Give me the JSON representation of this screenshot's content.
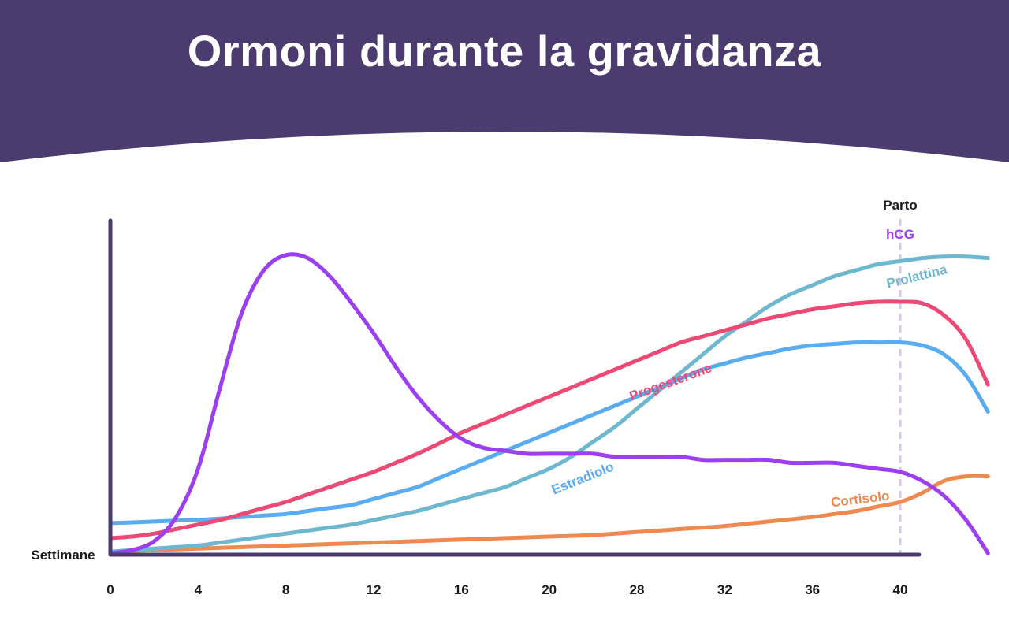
{
  "header": {
    "title": "Ormoni durante la gravidanza",
    "background": "#4b3b6e"
  },
  "chart_data": {
    "type": "line",
    "title": "Ormoni durante la gravidanza",
    "xlabel": "Settimane",
    "ylabel": "",
    "x_ticks": [
      "0",
      "4",
      "8",
      "12",
      "16",
      "20",
      "28",
      "32",
      "36",
      "40"
    ],
    "ylim": [
      0,
      100
    ],
    "grid": false,
    "annotation": {
      "label": "Parto",
      "at_tick": "40",
      "color": "#d9c5ee"
    },
    "axis_color": "#4b3b6e",
    "series": [
      {
        "name": "hCG",
        "color": "#9b3ff0",
        "points": [
          [
            0,
            0
          ],
          [
            1,
            1
          ],
          [
            2,
            4
          ],
          [
            3,
            12
          ],
          [
            4,
            28
          ],
          [
            5,
            55
          ],
          [
            6,
            80
          ],
          [
            7,
            94
          ],
          [
            8,
            99
          ],
          [
            9,
            98
          ],
          [
            10,
            92
          ],
          [
            11,
            83
          ],
          [
            12,
            73
          ],
          [
            13,
            62
          ],
          [
            14,
            52
          ],
          [
            15,
            44
          ],
          [
            16,
            38
          ],
          [
            17,
            35
          ],
          [
            18,
            34
          ],
          [
            19,
            33
          ],
          [
            20,
            33
          ],
          [
            21,
            33
          ],
          [
            22,
            33
          ],
          [
            23,
            32
          ],
          [
            24,
            32
          ],
          [
            25,
            32
          ],
          [
            26,
            32
          ],
          [
            27,
            31
          ],
          [
            28,
            31
          ],
          [
            29,
            31
          ],
          [
            30,
            31
          ],
          [
            31,
            30
          ],
          [
            32,
            30
          ],
          [
            33,
            30
          ],
          [
            34,
            29
          ],
          [
            35,
            28
          ],
          [
            36,
            27
          ],
          [
            37,
            24
          ],
          [
            38,
            19
          ],
          [
            39,
            11
          ],
          [
            40,
            0
          ]
        ]
      },
      {
        "name": "Progesterone",
        "color": "#ec4a74",
        "points": [
          [
            0,
            5
          ],
          [
            1,
            5.5
          ],
          [
            2,
            6.5
          ],
          [
            3,
            8
          ],
          [
            4,
            9.5
          ],
          [
            5,
            11
          ],
          [
            6,
            13
          ],
          [
            7,
            15
          ],
          [
            8,
            17
          ],
          [
            9,
            19.5
          ],
          [
            10,
            22
          ],
          [
            11,
            24.5
          ],
          [
            12,
            27
          ],
          [
            13,
            30
          ],
          [
            14,
            33
          ],
          [
            15,
            36.5
          ],
          [
            16,
            40
          ],
          [
            17,
            43
          ],
          [
            18,
            46
          ],
          [
            19,
            49
          ],
          [
            20,
            52
          ],
          [
            21,
            55
          ],
          [
            22,
            58
          ],
          [
            23,
            61
          ],
          [
            24,
            64
          ],
          [
            25,
            67
          ],
          [
            26,
            70
          ],
          [
            27,
            72
          ],
          [
            28,
            74
          ],
          [
            29,
            76
          ],
          [
            30,
            78
          ],
          [
            31,
            79.5
          ],
          [
            32,
            81
          ],
          [
            33,
            82
          ],
          [
            34,
            83
          ],
          [
            35,
            83.5
          ],
          [
            36,
            83.5
          ],
          [
            37,
            83
          ],
          [
            38,
            79
          ],
          [
            39,
            71
          ],
          [
            40,
            56
          ]
        ]
      },
      {
        "name": "Estradiolo",
        "color": "#5aacf1",
        "points": [
          [
            0,
            10
          ],
          [
            1,
            10.2
          ],
          [
            2,
            10.5
          ],
          [
            3,
            10.8
          ],
          [
            4,
            11
          ],
          [
            5,
            11.5
          ],
          [
            6,
            12
          ],
          [
            7,
            12.5
          ],
          [
            8,
            13
          ],
          [
            9,
            14
          ],
          [
            10,
            15
          ],
          [
            11,
            16
          ],
          [
            12,
            18
          ],
          [
            13,
            20
          ],
          [
            14,
            22
          ],
          [
            15,
            25
          ],
          [
            16,
            28
          ],
          [
            17,
            31
          ],
          [
            18,
            34
          ],
          [
            19,
            37
          ],
          [
            20,
            40
          ],
          [
            21,
            43
          ],
          [
            22,
            46
          ],
          [
            23,
            49
          ],
          [
            24,
            52
          ],
          [
            25,
            55
          ],
          [
            26,
            58
          ],
          [
            27,
            61
          ],
          [
            28,
            63
          ],
          [
            29,
            65
          ],
          [
            30,
            66.5
          ],
          [
            31,
            68
          ],
          [
            32,
            69
          ],
          [
            33,
            69.5
          ],
          [
            34,
            70
          ],
          [
            35,
            70
          ],
          [
            36,
            70
          ],
          [
            37,
            69
          ],
          [
            38,
            66
          ],
          [
            39,
            59
          ],
          [
            40,
            47
          ]
        ]
      },
      {
        "name": "Prolattina",
        "color": "#6db8cf",
        "points": [
          [
            0,
            0.5
          ],
          [
            1,
            1
          ],
          [
            2,
            1.5
          ],
          [
            3,
            2
          ],
          [
            4,
            2.5
          ],
          [
            5,
            3.5
          ],
          [
            6,
            4.5
          ],
          [
            7,
            5.5
          ],
          [
            8,
            6.5
          ],
          [
            9,
            7.5
          ],
          [
            10,
            8.5
          ],
          [
            11,
            9.5
          ],
          [
            12,
            11
          ],
          [
            13,
            12.5
          ],
          [
            14,
            14
          ],
          [
            15,
            16
          ],
          [
            16,
            18
          ],
          [
            17,
            20
          ],
          [
            18,
            22
          ],
          [
            19,
            25
          ],
          [
            20,
            28
          ],
          [
            21,
            32
          ],
          [
            22,
            37
          ],
          [
            23,
            42
          ],
          [
            24,
            48
          ],
          [
            25,
            54
          ],
          [
            26,
            60
          ],
          [
            27,
            66
          ],
          [
            28,
            72
          ],
          [
            29,
            77
          ],
          [
            30,
            82
          ],
          [
            31,
            86
          ],
          [
            32,
            89
          ],
          [
            33,
            92
          ],
          [
            34,
            94
          ],
          [
            35,
            96
          ],
          [
            36,
            97
          ],
          [
            37,
            98
          ],
          [
            38,
            98.5
          ],
          [
            39,
            98.5
          ],
          [
            40,
            98
          ]
        ]
      },
      {
        "name": "Cortisolo",
        "color": "#f0894f",
        "points": [
          [
            0,
            0.5
          ],
          [
            2,
            1
          ],
          [
            4,
            1.5
          ],
          [
            6,
            2
          ],
          [
            8,
            2.5
          ],
          [
            10,
            3
          ],
          [
            12,
            3.5
          ],
          [
            14,
            4
          ],
          [
            16,
            4.5
          ],
          [
            18,
            5
          ],
          [
            20,
            5.5
          ],
          [
            22,
            6
          ],
          [
            24,
            7
          ],
          [
            26,
            8
          ],
          [
            28,
            9
          ],
          [
            30,
            10.5
          ],
          [
            32,
            12
          ],
          [
            33,
            13
          ],
          [
            34,
            14
          ],
          [
            35,
            15.5
          ],
          [
            36,
            17
          ],
          [
            37,
            20
          ],
          [
            38,
            24
          ],
          [
            39,
            25.5
          ],
          [
            40,
            25.5
          ]
        ]
      }
    ]
  }
}
